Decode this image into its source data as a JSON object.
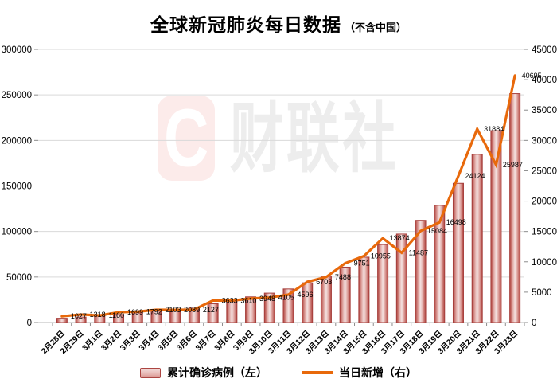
{
  "title": {
    "main": "全球新冠肺炎每日数据",
    "suffix": "（不含中国）"
  },
  "watermark": {
    "letter": "C",
    "brand_text": "财联社"
  },
  "legend": {
    "items": [
      {
        "label": "累计确诊病例（左）",
        "marker": "bar"
      },
      {
        "label": "当日新增（右）",
        "marker": "line"
      }
    ]
  },
  "chart_data": {
    "type": "combo",
    "title": "全球新冠肺炎每日数据（不含中国）",
    "categories": [
      "2月28日",
      "2月29日",
      "3月1日",
      "3月2日",
      "3月3日",
      "3月4日",
      "3月5日",
      "3月6日",
      "3月7日",
      "3月8日",
      "3月9日",
      "3月10日",
      "3月11日",
      "3月12日",
      "3月13日",
      "3月14日",
      "3月15日",
      "3月16日",
      "3月17日",
      "3月18日",
      "3月19日",
      "3月20日",
      "3月21日",
      "3月22日",
      "3月23日"
    ],
    "series": [
      {
        "name": "累计确诊病例（左）",
        "type": "bar",
        "axis": "left",
        "values": [
          4691,
          6009,
          7169,
          8868,
          10660,
          12763,
          14852,
          16979,
          20612,
          24222,
          28170,
          32275,
          36871,
          43574,
          51062,
          60813,
          71768,
          85642,
          97129,
          112213,
          128711,
          152835,
          184719,
          210706,
          251401
        ]
      },
      {
        "name": "当日新增（右）",
        "type": "line",
        "axis": "right",
        "data_labels": true,
        "values": [
          1027,
          1318,
          1160,
          1699,
          1792,
          2103,
          2089,
          2127,
          3633,
          3610,
          3948,
          4105,
          4596,
          6703,
          7488,
          9751,
          10955,
          13874,
          11487,
          15084,
          16498,
          24124,
          31884,
          25987,
          40695
        ]
      }
    ],
    "left_axis": {
      "min": 0,
      "max": 300000,
      "step": 50000,
      "tick_labels": [
        "0",
        "50000",
        "100000",
        "150000",
        "200000",
        "250000",
        "300000"
      ]
    },
    "right_axis": {
      "min": 0,
      "max": 45000,
      "step": 5000,
      "tick_labels": [
        "0",
        "5000",
        "10000",
        "15000",
        "20000",
        "25000",
        "30000",
        "35000",
        "40000",
        "45000"
      ]
    },
    "grid": "horizontal-major-left-axis",
    "x_tick_rotation": 45,
    "legend_position": "bottom"
  },
  "colors": {
    "line": "#e8690b",
    "bar_border": "#a63f3c",
    "bar_edge": "#ad4541",
    "bar_mid": "#e2aca8",
    "bar_center": "#f4e2e1",
    "grid": "#d9d9d9",
    "axis_line": "#b7b7b7",
    "tick": "#8c8c8c",
    "axis_text": "#000000",
    "data_label_text": "#000000",
    "watermark_box": "#fcebea",
    "watermark_text": "#ededed"
  }
}
